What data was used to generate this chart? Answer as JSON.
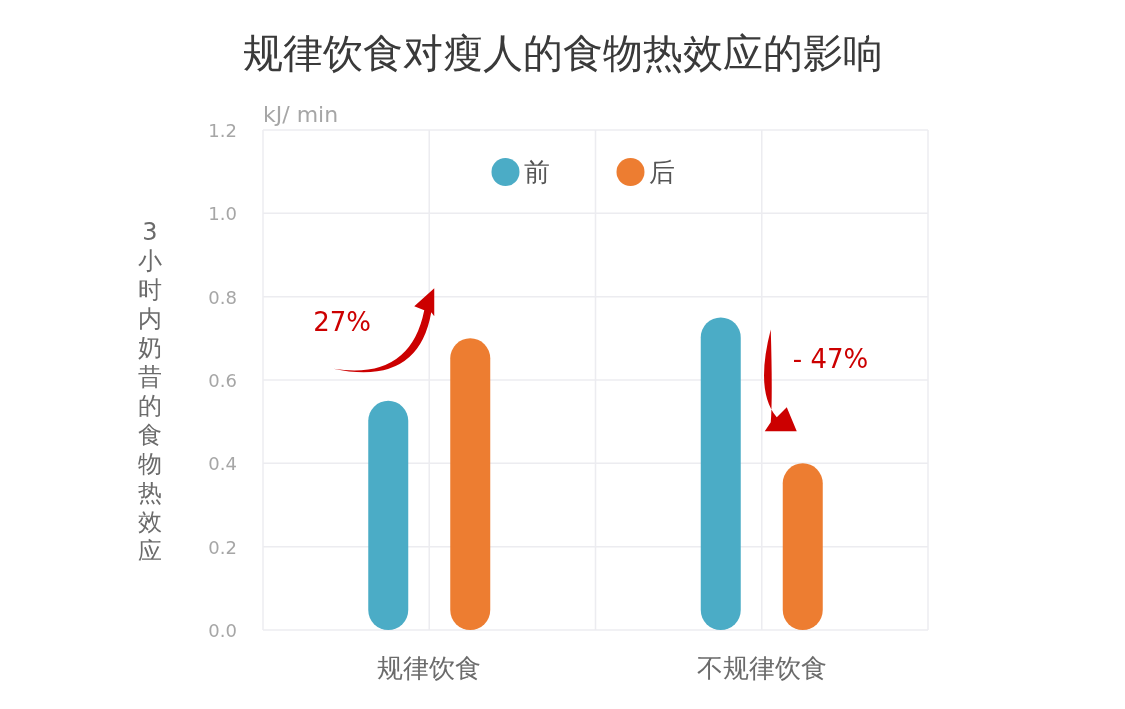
{
  "chart_data": {
    "type": "bar",
    "title": "规律饮食对瘦人的食物热效应的影响",
    "ylabel": "3小时内奶昔的食物热效应",
    "categories": [
      "规律饮食",
      "不规律饮食"
    ],
    "series": [
      {
        "name": "前",
        "color": "#4bacc6",
        "values": [
          0.55,
          0.75
        ]
      },
      {
        "name": "后",
        "color": "#ed7d31",
        "values": [
          0.7,
          0.4
        ]
      }
    ],
    "ylim": [
      0,
      1.2
    ],
    "yticks": [
      {
        "value": 0,
        "label": "0.0"
      },
      {
        "value": 0.2,
        "label": "0.2"
      },
      {
        "value": 0.4,
        "label": "0.4"
      },
      {
        "value": 0.6,
        "label": "0.6"
      },
      {
        "value": 0.8,
        "label": "0.8"
      },
      {
        "value": 1,
        "label": "1.0"
      },
      {
        "value": 1.2,
        "label": "1.2"
      }
    ],
    "grid": true,
    "legend": "top",
    "annotations": [
      "kJ/ min",
      "27%",
      "- 47%"
    ]
  }
}
